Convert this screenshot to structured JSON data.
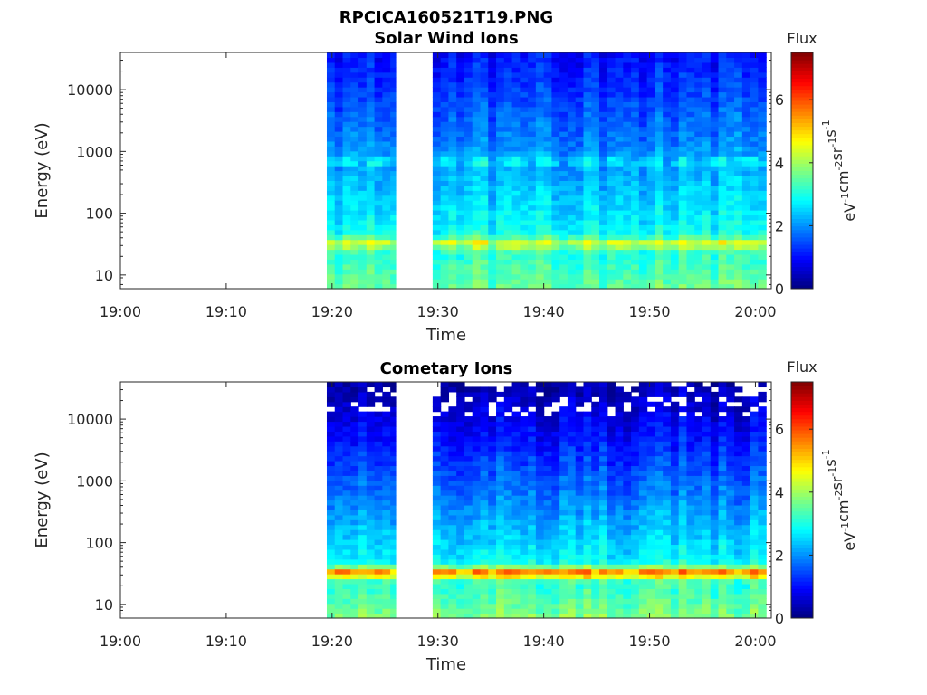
{
  "figure_title": "RPCICA160521T19.PNG",
  "chart_data": [
    {
      "type": "heatmap",
      "title": "Solar Wind Ions",
      "xlabel": "Time",
      "ylabel": "Energy (eV)",
      "yscale": "log",
      "ylim": [
        6,
        40000
      ],
      "y_ticks": [
        10,
        100,
        1000,
        10000
      ],
      "y_tick_labels": [
        "10",
        "100",
        "1000",
        "10000"
      ],
      "x_ticks": [
        "19:00",
        "19:10",
        "19:20",
        "19:30",
        "19:40",
        "19:50",
        "20:00"
      ],
      "xlim_minutes": [
        0,
        61.5
      ],
      "data_gaps_minutes": [
        [
          0,
          19.5
        ],
        [
          26.0,
          29.5
        ]
      ],
      "data_spans_minutes": [
        [
          19.5,
          26.0
        ],
        [
          29.5,
          61.0
        ]
      ],
      "colorbar": {
        "title": "Flux",
        "label": "eV-1cm-2sr-1s-1",
        "range": [
          0,
          7.5
        ],
        "ticks": [
          "0",
          "2",
          "4",
          "6"
        ],
        "colormap": "jet"
      },
      "features": [
        {
          "energy_eV": 33,
          "peak_flux": 4.8,
          "description_band": "main"
        },
        {
          "energy_eV": 700,
          "peak_flux": 3.6,
          "description_band": "secondary"
        }
      ],
      "background_flux": {
        "low_energy": 3.6,
        "high_energy": 1.0
      }
    },
    {
      "type": "heatmap",
      "title": "Cometary Ions",
      "xlabel": "Time",
      "ylabel": "Energy (eV)",
      "yscale": "log",
      "ylim": [
        6,
        40000
      ],
      "y_ticks": [
        10,
        100,
        1000,
        10000
      ],
      "y_tick_labels": [
        "10",
        "100",
        "1000",
        "10000"
      ],
      "x_ticks": [
        "19:00",
        "19:10",
        "19:20",
        "19:30",
        "19:40",
        "19:50",
        "20:00"
      ],
      "xlim_minutes": [
        0,
        61.5
      ],
      "data_gaps_minutes": [
        [
          0,
          19.5
        ],
        [
          26.0,
          29.5
        ]
      ],
      "data_spans_minutes": [
        [
          19.5,
          26.0
        ],
        [
          29.5,
          61.0
        ]
      ],
      "colorbar": {
        "title": "Flux",
        "label": "eV-1cm-2sr-1s-1",
        "range": [
          0,
          7.5
        ],
        "ticks": [
          "0",
          "2",
          "4",
          "6"
        ],
        "colormap": "jet"
      },
      "features": [
        {
          "energy_eV": 33,
          "peak_flux": 6.4,
          "description_band": "main"
        }
      ],
      "background_flux": {
        "low_energy": 3.8,
        "high_energy": 0.3
      }
    }
  ]
}
